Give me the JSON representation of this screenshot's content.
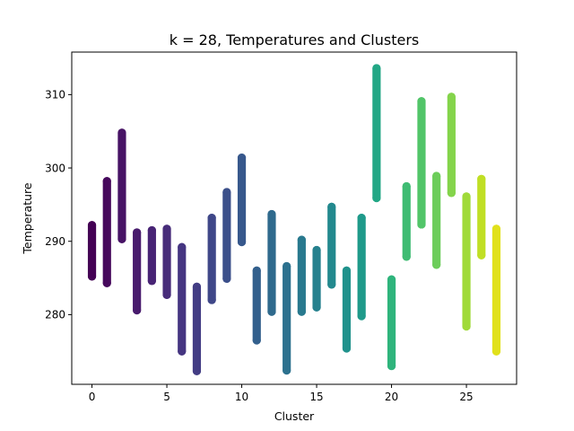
{
  "chart_data": {
    "type": "scatter",
    "title": "k = 28, Temperatures and Clusters",
    "xlabel": "Cluster",
    "ylabel": "Temperature",
    "xlim": [
      -1.35,
      28.35
    ],
    "ylim": [
      270.5,
      315.8
    ],
    "xticks": [
      0,
      5,
      10,
      15,
      20,
      25
    ],
    "yticks": [
      280,
      290,
      300,
      310
    ],
    "grid": false,
    "legend": "none",
    "colormap": "viridis",
    "clusters": [
      {
        "x": 0,
        "min": 285.2,
        "max": 292.2,
        "color": "#440154"
      },
      {
        "x": 1,
        "min": 284.3,
        "max": 298.2,
        "color": "#46085c"
      },
      {
        "x": 2,
        "min": 290.3,
        "max": 304.8,
        "color": "#471365"
      },
      {
        "x": 3,
        "min": 280.6,
        "max": 291.2,
        "color": "#481b6d"
      },
      {
        "x": 4,
        "min": 284.6,
        "max": 291.5,
        "color": "#482475"
      },
      {
        "x": 5,
        "min": 282.7,
        "max": 291.7,
        "color": "#472c7a"
      },
      {
        "x": 6,
        "min": 275.0,
        "max": 289.2,
        "color": "#453581"
      },
      {
        "x": 7,
        "min": 272.3,
        "max": 283.8,
        "color": "#433d84"
      },
      {
        "x": 8,
        "min": 282.0,
        "max": 293.2,
        "color": "#3f4788"
      },
      {
        "x": 9,
        "min": 284.9,
        "max": 296.7,
        "color": "#3b4f8a"
      },
      {
        "x": 10,
        "min": 289.9,
        "max": 301.4,
        "color": "#37588c"
      },
      {
        "x": 11,
        "min": 276.5,
        "max": 286.0,
        "color": "#33608d"
      },
      {
        "x": 12,
        "min": 280.4,
        "max": 293.7,
        "color": "#2f6a8d"
      },
      {
        "x": 13,
        "min": 272.4,
        "max": 286.6,
        "color": "#2c718e"
      },
      {
        "x": 14,
        "min": 280.4,
        "max": 290.2,
        "color": "#28798e"
      },
      {
        "x": 15,
        "min": 281.0,
        "max": 288.8,
        "color": "#26818e"
      },
      {
        "x": 16,
        "min": 284.1,
        "max": 294.7,
        "color": "#23898e"
      },
      {
        "x": 17,
        "min": 275.4,
        "max": 286.0,
        "color": "#20928c"
      },
      {
        "x": 18,
        "min": 279.8,
        "max": 293.2,
        "color": "#1f9a8a"
      },
      {
        "x": 19,
        "min": 295.9,
        "max": 313.6,
        "color": "#22a785"
      },
      {
        "x": 20,
        "min": 273.0,
        "max": 284.8,
        "color": "#2fb47c"
      },
      {
        "x": 21,
        "min": 287.9,
        "max": 297.5,
        "color": "#3fbc73"
      },
      {
        "x": 22,
        "min": 292.3,
        "max": 309.1,
        "color": "#52c569"
      },
      {
        "x": 23,
        "min": 286.8,
        "max": 298.9,
        "color": "#6ccd5a"
      },
      {
        "x": 24,
        "min": 296.6,
        "max": 309.7,
        "color": "#84d44b"
      },
      {
        "x": 25,
        "min": 278.4,
        "max": 296.1,
        "color": "#a0da39"
      },
      {
        "x": 26,
        "min": 288.1,
        "max": 298.5,
        "color": "#c0df25"
      },
      {
        "x": 27,
        "min": 275.0,
        "max": 291.7,
        "color": "#e1e11b"
      }
    ]
  }
}
